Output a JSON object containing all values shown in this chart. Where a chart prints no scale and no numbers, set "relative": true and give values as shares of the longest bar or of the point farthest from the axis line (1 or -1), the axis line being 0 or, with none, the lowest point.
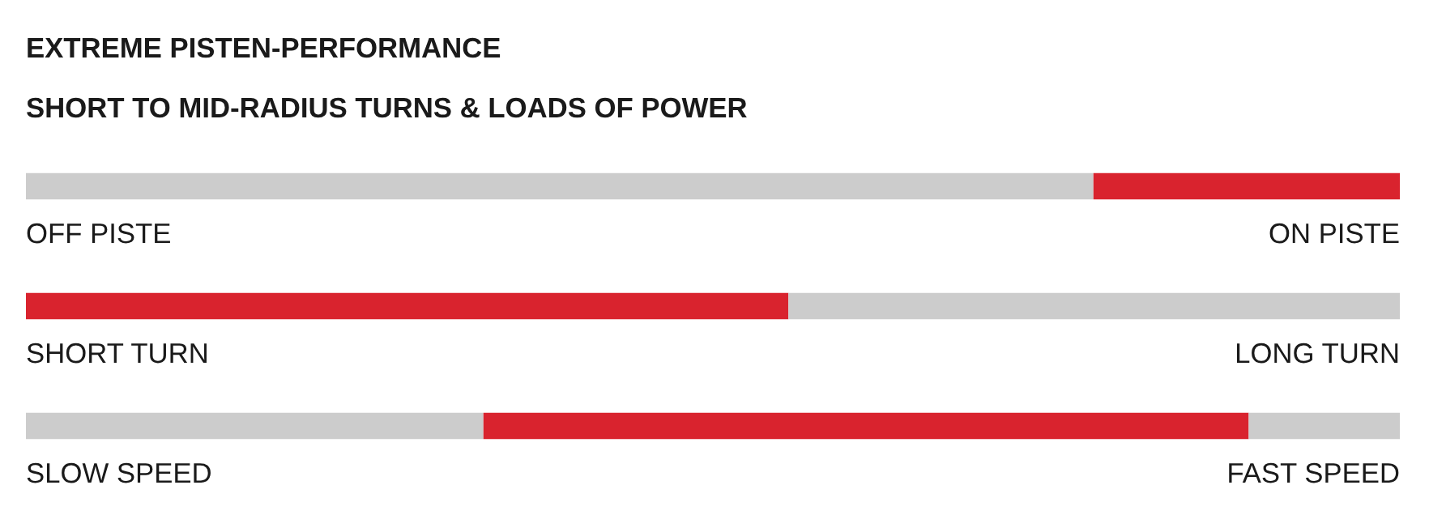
{
  "chart_data": {
    "type": "bar",
    "orientation": "horizontal",
    "relative": true,
    "stacked": true,
    "title": "EXTREME PISTEN-PERFORMANCE",
    "subtitle": "SHORT TO MID-RADIUS TURNS & LOADS OF POWER",
    "categories": [
      "OFF PISTE",
      "SHORT TURN",
      "SLOW SPEED"
    ],
    "series": [
      {
        "color": "#cccccc",
        "values": [
          0.777,
          null,
          0.333
        ]
      },
      {
        "color": "#d9232e",
        "values": [
          0.223,
          0.555,
          0.557
        ]
      },
      {
        "color": "#cccccc",
        "values": [
          null,
          0.445,
          0.11
        ]
      }
    ],
    "annotations": [
      "ON PISTE",
      "LONG TURN",
      "FAST SPEED"
    ],
    "legend": false
  }
}
